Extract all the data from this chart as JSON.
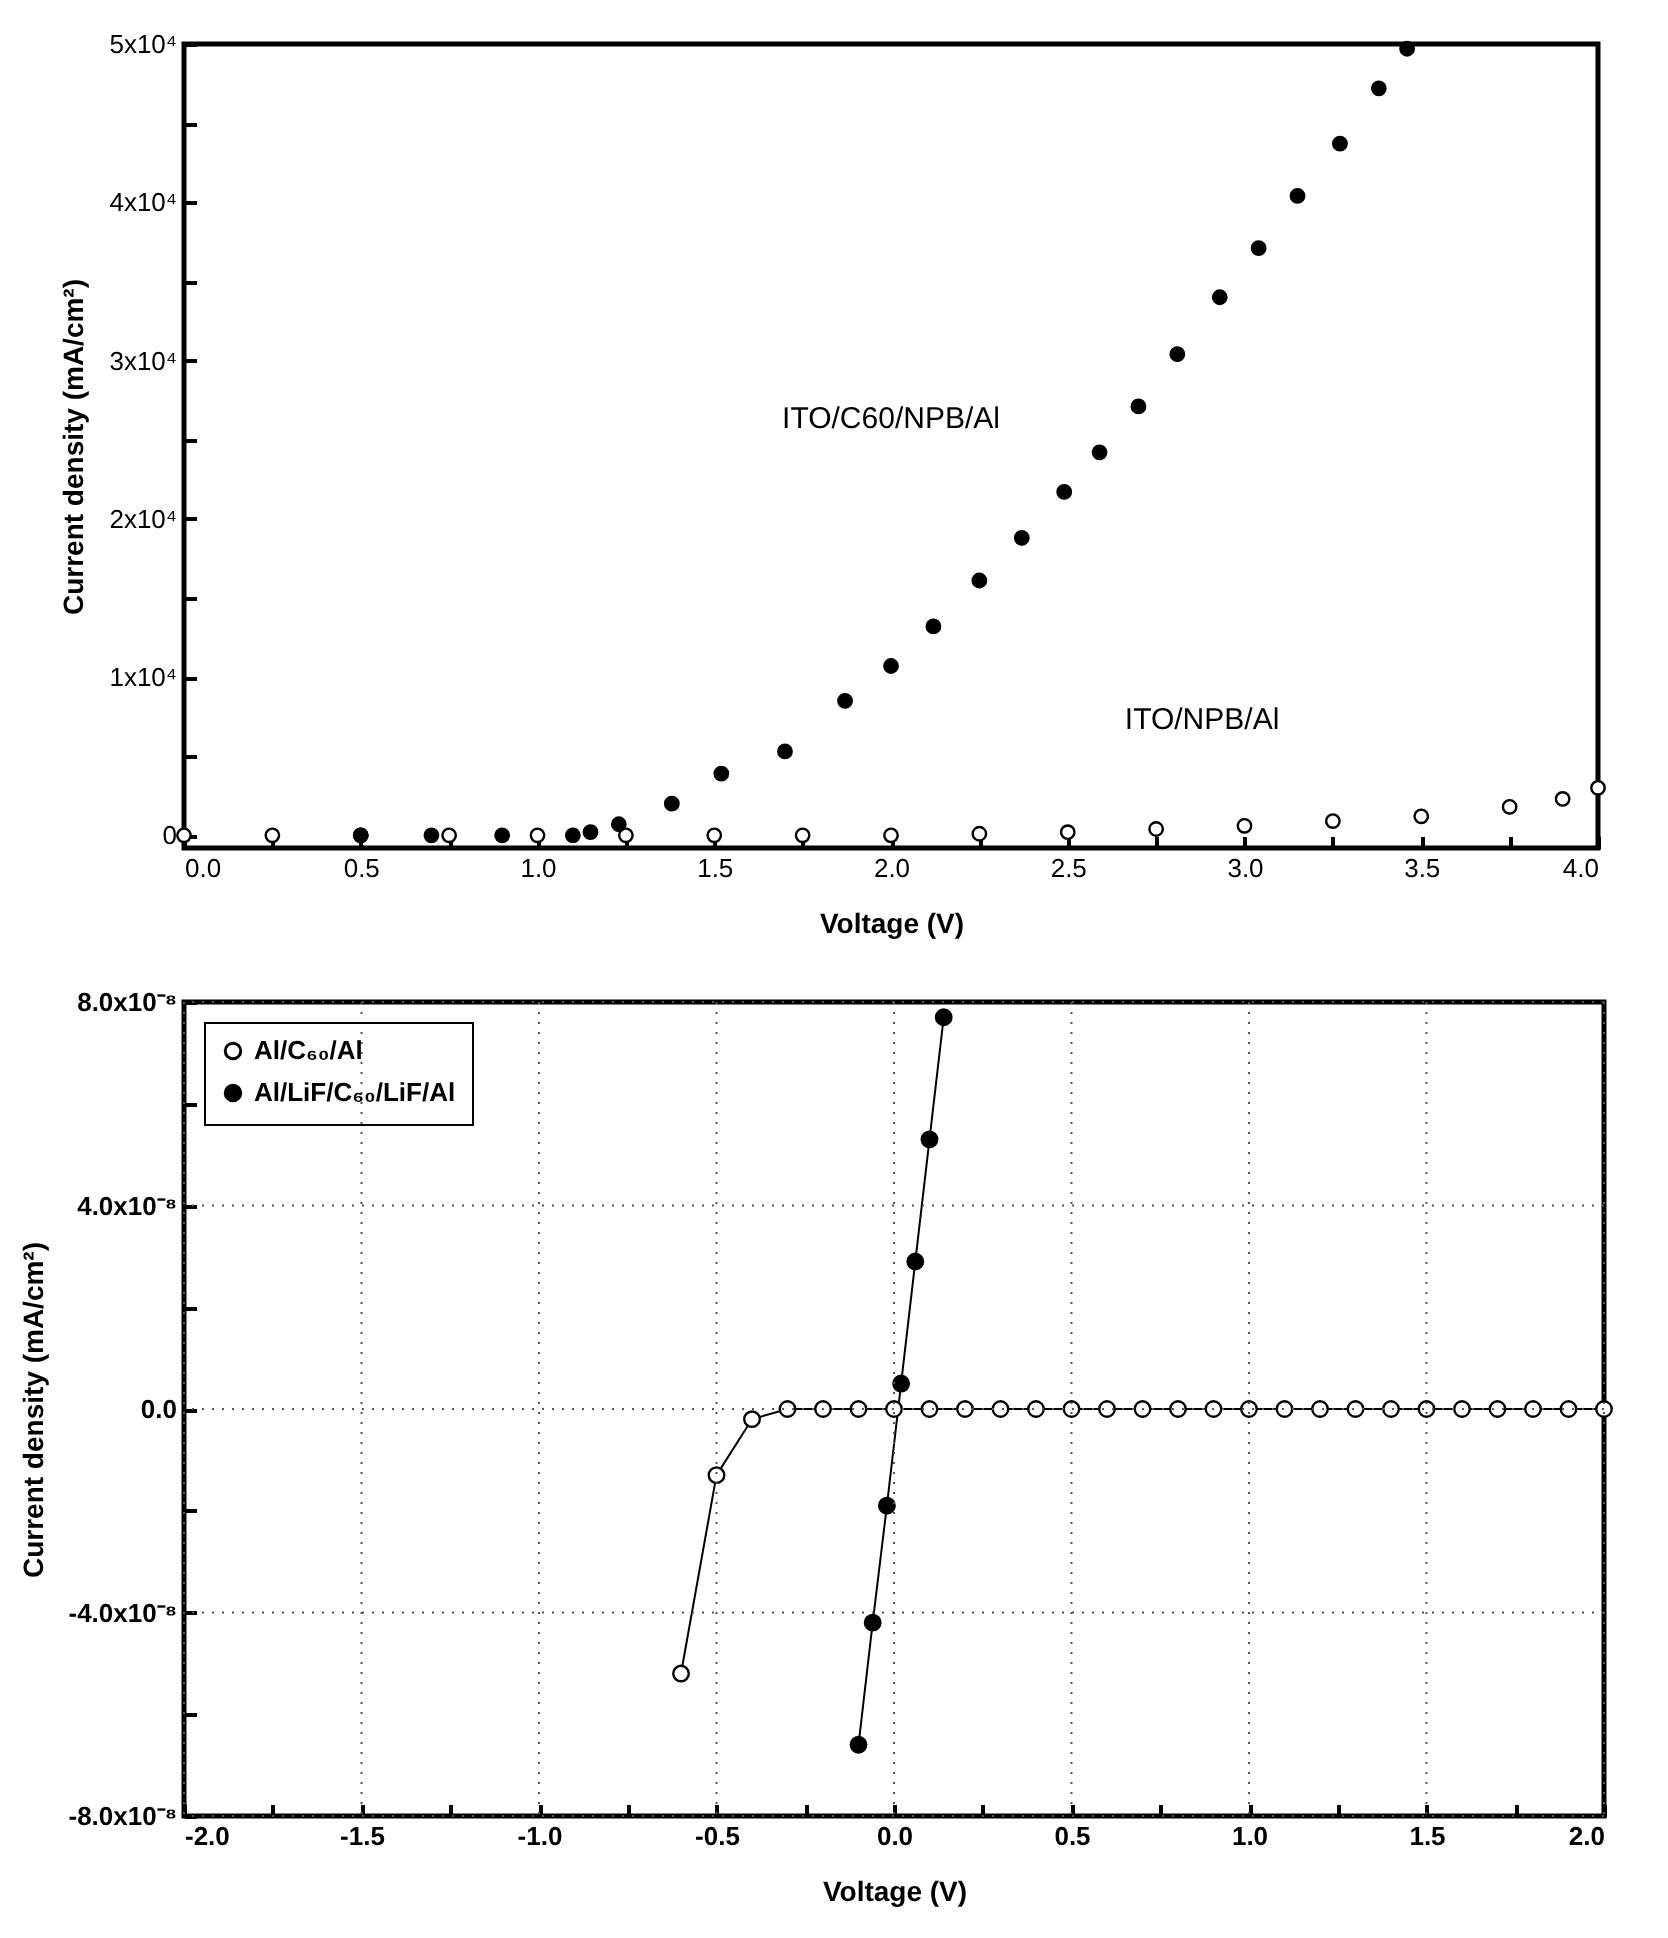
{
  "chart_data": [
    {
      "type": "scatter",
      "xlabel": "Voltage (V)",
      "ylabel": "Current density (mA/cm²)",
      "marker": "circle",
      "legend": false,
      "grid": false,
      "xlim": [
        0,
        4
      ],
      "ylim": [
        -800,
        50000
      ],
      "xticks": [
        {
          "value": 0,
          "label": "0.0"
        },
        {
          "value": 0.25,
          "label": null
        },
        0.5,
        {
          "value": 0.75,
          "label": null
        },
        {
          "value": 1,
          "label": "1.0"
        },
        {
          "value": 1.25,
          "label": null
        },
        1.5,
        {
          "value": 1.75,
          "label": null
        },
        {
          "value": 2,
          "label": "2.0"
        },
        {
          "value": 2.25,
          "label": null
        },
        2.5,
        {
          "value": 2.75,
          "label": null
        },
        {
          "value": 3,
          "label": "3.0"
        },
        {
          "value": 3.25,
          "label": null
        },
        3.5,
        {
          "value": 3.75,
          "label": null
        },
        {
          "value": 4,
          "label": "4.0"
        }
      ],
      "yticks": [
        0,
        {
          "value": 5000,
          "label": null
        },
        {
          "value": 10000,
          "label": "1x10⁴"
        },
        {
          "value": 15000,
          "label": null
        },
        {
          "value": 20000,
          "label": "2x10⁴"
        },
        {
          "value": 25000,
          "label": null
        },
        {
          "value": 30000,
          "label": "3x10⁴"
        },
        {
          "value": 35000,
          "label": null
        },
        {
          "value": 40000,
          "label": "4x10⁴"
        },
        {
          "value": 45000,
          "label": null
        },
        {
          "value": 50000,
          "label": "5x10⁴"
        }
      ],
      "series": [
        {
          "name": "ITO/NPB/Al",
          "color": "#000000",
          "x": [
            0,
            0.25,
            0.5,
            0.75,
            1.0,
            1.25,
            1.5,
            1.75,
            2.0,
            2.25,
            2.5,
            2.75,
            3.0,
            3.25,
            3.5,
            3.75,
            3.9,
            4.0
          ],
          "values": [
            0,
            0,
            0,
            0,
            0,
            0,
            0,
            0,
            0,
            100,
            200,
            400,
            600,
            900,
            1200,
            1800,
            2300,
            3000
          ]
        },
        {
          "name": "ITO/C60/NPB/Al",
          "color": "#000000",
          "x": [
            0.5,
            0.7,
            0.9,
            1.1,
            1.15,
            1.23,
            1.38,
            1.52,
            1.7,
            1.87,
            2.0,
            2.12,
            2.25,
            2.37,
            2.49,
            2.59,
            2.7,
            2.81,
            2.93,
            3.04,
            3.15,
            3.27,
            3.38,
            3.46
          ],
          "values": [
            0,
            0,
            0,
            0,
            200,
            700,
            2000,
            3900,
            5300,
            8500,
            10700,
            13200,
            16100,
            18800,
            21700,
            24200,
            27100,
            30400,
            34000,
            37100,
            40400,
            43700,
            47200,
            49700
          ]
        }
      ]
    },
    {
      "type": "line",
      "xlabel": "Voltage (V)",
      "ylabel": "Current density (mA/cm²)",
      "marker": "circle",
      "line_style": "solid",
      "legend": "top left",
      "grid": true,
      "xlim": [
        -2,
        2
      ],
      "ylim": [
        -8e-08,
        8e-08
      ],
      "xticks": [
        {
          "value": -2,
          "label": "-2.0"
        },
        {
          "value": -1.75,
          "label": null
        },
        -1.5,
        {
          "value": -1.25,
          "label": null
        },
        {
          "value": -1,
          "label": "-1.0"
        },
        {
          "value": -0.75,
          "label": null
        },
        -0.5,
        {
          "value": -0.25,
          "label": null
        },
        {
          "value": 0,
          "label": "0.0"
        },
        {
          "value": 0.25,
          "label": null
        },
        0.5,
        {
          "value": 0.75,
          "label": null
        },
        {
          "value": 1,
          "label": "1.0"
        },
        {
          "value": 1.25,
          "label": null
        },
        1.5,
        {
          "value": 1.75,
          "label": null
        },
        {
          "value": 2,
          "label": "2.0"
        }
      ],
      "yticks": [
        {
          "value": -8e-08,
          "label": "-8.0x10⁻⁸"
        },
        {
          "value": -6e-08,
          "label": null
        },
        {
          "value": -4e-08,
          "label": "-4.0x10⁻⁸"
        },
        {
          "value": -2e-08,
          "label": null
        },
        {
          "value": 0,
          "label": "0.0"
        },
        {
          "value": 2e-08,
          "label": null
        },
        {
          "value": 4e-08,
          "label": "4.0x10⁻⁸"
        },
        {
          "value": 6e-08,
          "label": null
        },
        {
          "value": 8e-08,
          "label": "8.0x10⁻⁸"
        }
      ],
      "series": [
        {
          "name": "Al/C₆₀/Al",
          "color": "#000000",
          "x": [
            -0.6,
            -0.5,
            -0.4,
            -0.3,
            -0.2,
            -0.1,
            0,
            0.1,
            0.2,
            0.3,
            0.4,
            0.5,
            0.6,
            0.7,
            0.8,
            0.9,
            1.0,
            1.1,
            1.2,
            1.3,
            1.4,
            1.5,
            1.6,
            1.7,
            1.8,
            1.9,
            2.0
          ],
          "values": [
            -5.2e-08,
            -1.3e-08,
            -2e-09,
            0,
            0,
            0,
            0,
            0,
            0,
            0,
            0,
            0,
            0,
            0,
            0,
            0,
            0,
            0,
            0,
            0,
            0,
            0,
            0,
            0,
            0,
            0,
            0
          ]
        },
        {
          "name": "Al/LiF/C₆₀/LiF/Al",
          "color": "#000000",
          "x": [
            -0.1,
            -0.06,
            -0.02,
            0.02,
            0.06,
            0.1,
            0.14
          ],
          "values": [
            -6.6e-08,
            -4.2e-08,
            -1.9e-08,
            5e-09,
            2.9e-08,
            5.3e-08,
            7.7e-08
          ]
        }
      ]
    }
  ]
}
